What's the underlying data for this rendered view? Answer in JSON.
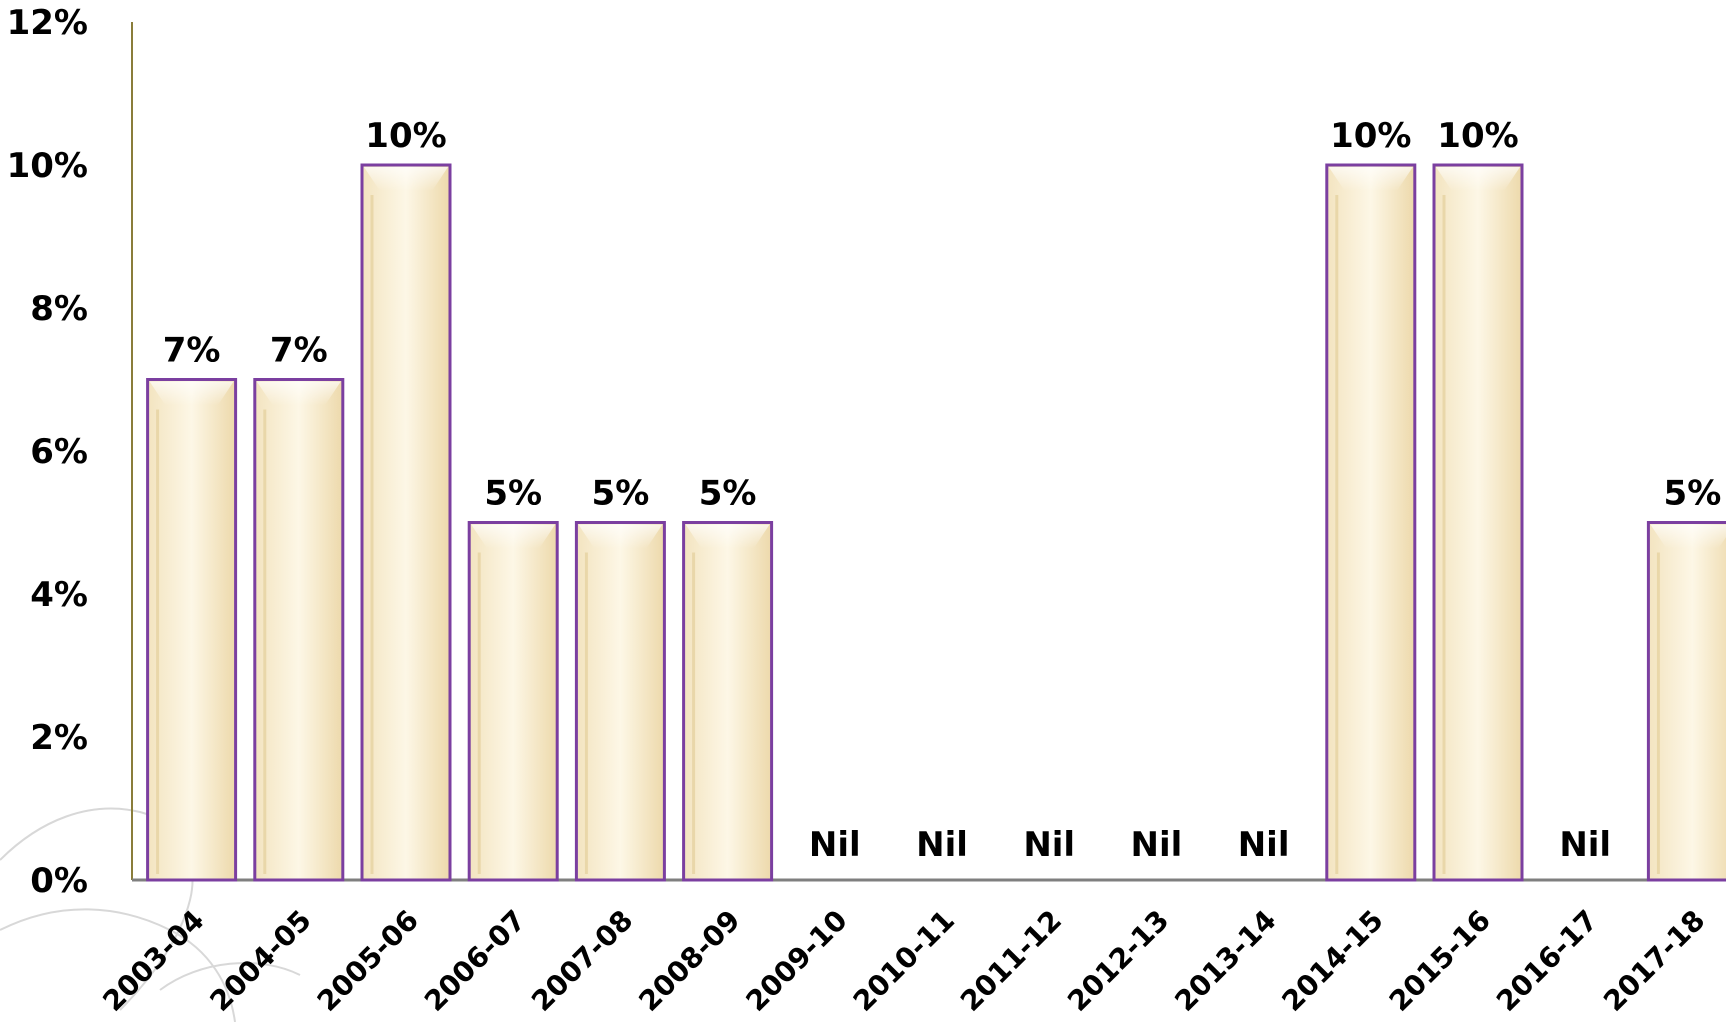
{
  "chart_data": {
    "type": "bar",
    "categories": [
      "2003-04",
      "2004-05",
      "2005-06",
      "2006-07",
      "2007-08",
      "2008-09",
      "2009-10",
      "2010-11",
      "2011-12",
      "2012-13",
      "2013-14",
      "2014-15",
      "2015-16",
      "2016-17",
      "2017-18"
    ],
    "values": [
      7,
      7,
      10,
      5,
      5,
      5,
      0,
      0,
      0,
      0,
      0,
      10,
      10,
      0,
      5
    ],
    "data_labels": [
      "7%",
      "7%",
      "10%",
      "5%",
      "5%",
      "5%",
      "Nil",
      "Nil",
      "Nil",
      "Nil",
      "Nil",
      "10%",
      "10%",
      "Nil",
      "5%"
    ],
    "y_ticks": [
      0,
      2,
      4,
      6,
      8,
      10,
      12
    ],
    "y_tick_labels": [
      "0%",
      "2%",
      "4%",
      "6%",
      "8%",
      "10%",
      "12%"
    ],
    "ylim": [
      0,
      12
    ],
    "title": "",
    "xlabel": "",
    "ylabel": "",
    "grid": false,
    "legend": "none",
    "colors": {
      "bar_fill_light": "#fbf3df",
      "bar_fill_dark": "#efdcb2",
      "bar_border": "#7b3fa0",
      "axis_y": "#8a7d3a",
      "axis_x": "#7f7f7f",
      "watermark": "#d8d8d8"
    }
  }
}
